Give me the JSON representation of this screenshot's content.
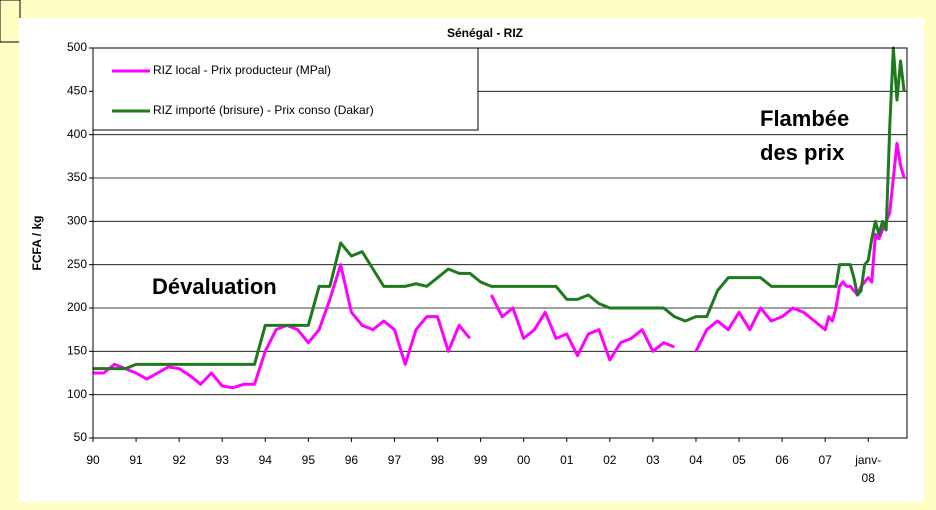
{
  "chart_data": {
    "type": "line",
    "title": "Sénégal - RIZ",
    "ylabel": "FCFA / kg",
    "annotations": [
      "Dévaluation",
      "Flambée",
      "des prix"
    ],
    "xlim": [
      1990,
      2008.9
    ],
    "xticks": [
      {
        "value": 1990,
        "label": "90"
      },
      {
        "value": 1991,
        "label": "91"
      },
      {
        "value": 1992,
        "label": "92"
      },
      {
        "value": 1993,
        "label": "93"
      },
      {
        "value": 1994,
        "label": "94"
      },
      {
        "value": 1995,
        "label": "95"
      },
      {
        "value": 1996,
        "label": "96"
      },
      {
        "value": 1997,
        "label": "97"
      },
      {
        "value": 1998,
        "label": "98"
      },
      {
        "value": 1999,
        "label": "99"
      },
      {
        "value": 2000,
        "label": "00"
      },
      {
        "value": 2001,
        "label": "01"
      },
      {
        "value": 2002,
        "label": "02"
      },
      {
        "value": 2003,
        "label": "03"
      },
      {
        "value": 2004,
        "label": "04"
      },
      {
        "value": 2005,
        "label": "05"
      },
      {
        "value": 2006,
        "label": "06"
      },
      {
        "value": 2007,
        "label": "07"
      },
      {
        "value": 2008,
        "label": "janv-08"
      }
    ],
    "ylim": [
      50,
      500
    ],
    "yticks": [
      50,
      100,
      150,
      200,
      250,
      300,
      350,
      400,
      450,
      500
    ],
    "grid": true,
    "legend": "top-left",
    "x": [
      1990,
      1990.25,
      1990.5,
      1990.75,
      1991,
      1991.25,
      1991.5,
      1991.75,
      1992,
      1992.25,
      1992.5,
      1992.75,
      1993,
      1993.25,
      1993.5,
      1993.75,
      1994,
      1994.25,
      1994.5,
      1994.75,
      1995,
      1995.25,
      1995.5,
      1995.75,
      1996,
      1996.25,
      1996.5,
      1996.75,
      1997,
      1997.25,
      1997.5,
      1997.75,
      1998,
      1998.25,
      1998.5,
      1998.75,
      1999,
      1999.25,
      1999.5,
      1999.75,
      2000,
      2000.25,
      2000.5,
      2000.75,
      2001,
      2001.25,
      2001.5,
      2001.75,
      2002,
      2002.25,
      2002.5,
      2002.75,
      2003,
      2003.25,
      2003.5,
      2003.75,
      2004,
      2004.25,
      2004.5,
      2004.75,
      2005,
      2005.25,
      2005.5,
      2005.75,
      2006,
      2006.25,
      2006.5,
      2006.75,
      2007,
      2007.083,
      2007.167,
      2007.25,
      2007.333,
      2007.417,
      2007.5,
      2007.583,
      2007.667,
      2007.75,
      2007.833,
      2007.917,
      2008,
      2008.083,
      2008.167,
      2008.25,
      2008.333,
      2008.417,
      2008.5,
      2008.583,
      2008.667,
      2008.75,
      2008.833
    ],
    "series": [
      {
        "name": "RIZ local - Prix producteur (MPal)",
        "color": "#ff00ff",
        "values": [
          125,
          125,
          135,
          130,
          125,
          118,
          125,
          132,
          130,
          122,
          112,
          125,
          110,
          108,
          112,
          112,
          150,
          175,
          180,
          175,
          160,
          175,
          210,
          250,
          195,
          180,
          175,
          185,
          175,
          135,
          175,
          190,
          190,
          150,
          180,
          165,
          null,
          215,
          190,
          200,
          165,
          175,
          195,
          165,
          170,
          145,
          170,
          175,
          140,
          160,
          165,
          175,
          150,
          160,
          155,
          null,
          150,
          175,
          185,
          175,
          195,
          175,
          200,
          185,
          190,
          200,
          195,
          185,
          175,
          190,
          185,
          200,
          225,
          230,
          225,
          225,
          220,
          215,
          225,
          230,
          235,
          230,
          285,
          280,
          290,
          300,
          310,
          350,
          390,
          365,
          350
        ]
      },
      {
        "name": "RIZ importé (brisure) - Prix conso (Dakar)",
        "color": "#1f7a1f",
        "values": [
          130,
          130,
          130,
          130,
          135,
          135,
          135,
          135,
          135,
          135,
          135,
          135,
          135,
          135,
          135,
          135,
          180,
          180,
          180,
          180,
          180,
          225,
          225,
          275,
          260,
          265,
          245,
          225,
          225,
          225,
          228,
          225,
          235,
          245,
          240,
          240,
          230,
          225,
          225,
          225,
          225,
          225,
          225,
          225,
          210,
          210,
          215,
          205,
          200,
          200,
          200,
          200,
          200,
          200,
          190,
          185,
          190,
          190,
          220,
          235,
          235,
          235,
          235,
          225,
          225,
          225,
          225,
          225,
          225,
          225,
          225,
          225,
          250,
          250,
          250,
          250,
          235,
          215,
          220,
          250,
          255,
          280,
          300,
          285,
          300,
          290,
          410,
          500,
          440,
          485,
          450
        ]
      }
    ]
  }
}
